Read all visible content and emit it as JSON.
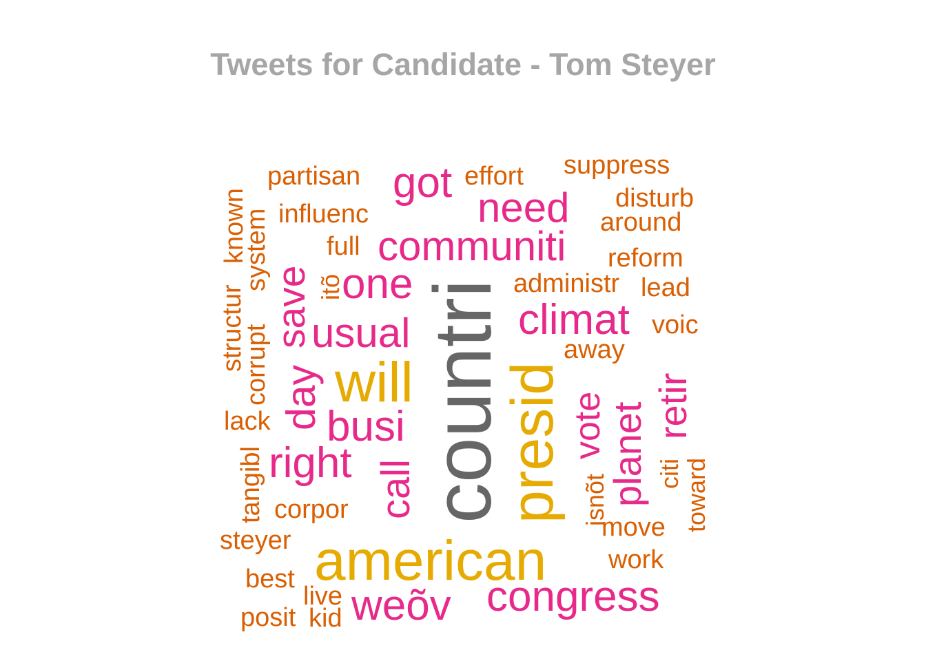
{
  "chart_data": {
    "type": "wordcloud",
    "title": "Tweets for Candidate - Tom Steyer",
    "colors": {
      "title": "#a6a6a6",
      "tier1": "#666666",
      "tier2": "#e6ab02",
      "tier3": "#e7298a",
      "tier4": "#d95f02"
    },
    "words": [
      {
        "text": "countri",
        "tier": 1
      },
      {
        "text": "american",
        "tier": 2
      },
      {
        "text": "presid",
        "tier": 2
      },
      {
        "text": "will",
        "tier": 2
      },
      {
        "text": "congress",
        "tier": 3
      },
      {
        "text": "communiti",
        "tier": 3
      },
      {
        "text": "climat",
        "tier": 3
      },
      {
        "text": "need",
        "tier": 3
      },
      {
        "text": "got",
        "tier": 3
      },
      {
        "text": "one",
        "tier": 3
      },
      {
        "text": "usual",
        "tier": 3
      },
      {
        "text": "busi",
        "tier": 3
      },
      {
        "text": "right",
        "tier": 3
      },
      {
        "text": "weõv",
        "tier": 3
      },
      {
        "text": "save",
        "tier": 3
      },
      {
        "text": "day",
        "tier": 3
      },
      {
        "text": "call",
        "tier": 3
      },
      {
        "text": "vote",
        "tier": 3
      },
      {
        "text": "planet",
        "tier": 3
      },
      {
        "text": "retir",
        "tier": 3
      },
      {
        "text": "partisan",
        "tier": 4
      },
      {
        "text": "effort",
        "tier": 4
      },
      {
        "text": "suppress",
        "tier": 4
      },
      {
        "text": "disturb",
        "tier": 4
      },
      {
        "text": "around",
        "tier": 4
      },
      {
        "text": "influenc",
        "tier": 4
      },
      {
        "text": "full",
        "tier": 4
      },
      {
        "text": "reform",
        "tier": 4
      },
      {
        "text": "administr",
        "tier": 4
      },
      {
        "text": "lead",
        "tier": 4
      },
      {
        "text": "voic",
        "tier": 4
      },
      {
        "text": "away",
        "tier": 4
      },
      {
        "text": "itõ",
        "tier": 4
      },
      {
        "text": "structur",
        "tier": 4
      },
      {
        "text": "known",
        "tier": 4
      },
      {
        "text": "system",
        "tier": 4
      },
      {
        "text": "corrupt",
        "tier": 4
      },
      {
        "text": "lack",
        "tier": 4
      },
      {
        "text": "tangibl",
        "tier": 4
      },
      {
        "text": "corpor",
        "tier": 4
      },
      {
        "text": "steyer",
        "tier": 4
      },
      {
        "text": "best",
        "tier": 4
      },
      {
        "text": "live",
        "tier": 4
      },
      {
        "text": "posit",
        "tier": 4
      },
      {
        "text": "kid",
        "tier": 4
      },
      {
        "text": "isnõt",
        "tier": 4
      },
      {
        "text": "citi",
        "tier": 4
      },
      {
        "text": "toward",
        "tier": 4
      },
      {
        "text": "move",
        "tier": 4
      },
      {
        "text": "work",
        "tier": 4
      }
    ]
  }
}
